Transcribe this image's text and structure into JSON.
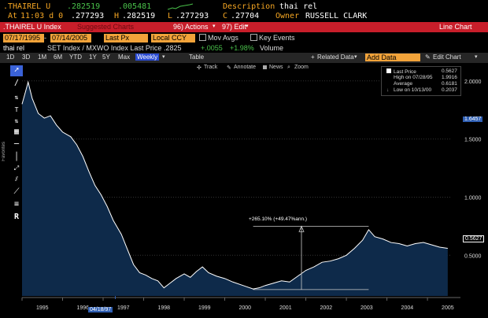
{
  "header": {
    "ticker": ".THAIREL U",
    "last": ".282519",
    "change": ".005481",
    "description_label": "Description",
    "description": "thai rel",
    "at_label": "At",
    "time": "11:03 d 0",
    "open": ".277293",
    "high_label": "H",
    "high": ".282519",
    "low_label": "L",
    "low": ".277293",
    "close_label": "C",
    "close": ".27704",
    "owner_label": "Owner",
    "owner": "RUSSELL CLARK"
  },
  "function_bar": {
    "security": ".THAIREL U Index",
    "compare": "Suggested Charts",
    "actions": "96) Actions",
    "edit": "97) Edit",
    "chart_type": "Line Chart"
  },
  "settings_bar": {
    "start_date": "07/17/1995",
    "end_date": "07/14/2005",
    "price_field": "Last Px",
    "currency": "Local CCY",
    "mov_avgs": "Mov Avgs",
    "key_events": "Key Events"
  },
  "info_bar": {
    "name": "thai rel",
    "series": "SET Index / MXWO Index Last Price",
    "price": ".2825",
    "change": "+.0055",
    "pct": "+1.98%",
    "volume": "Volume"
  },
  "tabs": [
    "1D",
    "3D",
    "1M",
    "6M",
    "YTD",
    "1Y",
    "5Y",
    "Max",
    "Weekly",
    "Table"
  ],
  "active_tab": "Weekly",
  "right_tools": {
    "related": "Related Data",
    "add": "Add Data",
    "edit": "Edit Chart"
  },
  "chart_tools": [
    "Track",
    "Annotate",
    "News",
    "Zoom"
  ],
  "favorites": "Favorites",
  "legend": {
    "last_price_label": "Last Price",
    "last_price": "0.5627",
    "high_label": "High on 07/28/95",
    "high": "1.9916",
    "average_label": "Average",
    "average": "0.6181",
    "low_label": "Low on 10/13/00",
    "low": "0.2037"
  },
  "annotation": "+265.10% (+49.47%ann.)",
  "crosshair_label": "04/18/97",
  "price_boxes": {
    "crosshair": "1.6457",
    "last": "0.5627"
  },
  "colors": {
    "background": "#000000",
    "bar_red": "#c81e2a",
    "amber": "#f5a623",
    "line": "#ffffff",
    "area": "#0e2a4a",
    "tab_active": "#2a4bd3",
    "label_blue": "#2f5fb3"
  },
  "chart_data": {
    "type": "area",
    "title": "",
    "xlabel": "",
    "ylabel": "",
    "x_ticks": [
      "1995",
      "1996",
      "1997",
      "1998",
      "1999",
      "2000",
      "2001",
      "2002",
      "2003",
      "2004",
      "2005"
    ],
    "y_ticks": [
      "0.5000",
      "1.0000",
      "1.5000",
      "2.0000"
    ],
    "ylim": [
      0.15,
      2.1
    ],
    "xlim": [
      1995.0,
      2005.6
    ],
    "grid": true,
    "series": [
      {
        "values": [
          [
            1995.0,
            1.8
          ],
          [
            1995.08,
            1.9
          ],
          [
            1995.15,
            1.99
          ],
          [
            1995.25,
            1.85
          ],
          [
            1995.4,
            1.72
          ],
          [
            1995.55,
            1.68
          ],
          [
            1995.7,
            1.7
          ],
          [
            1995.85,
            1.62
          ],
          [
            1996.0,
            1.56
          ],
          [
            1996.2,
            1.52
          ],
          [
            1996.35,
            1.45
          ],
          [
            1996.5,
            1.35
          ],
          [
            1996.65,
            1.22
          ],
          [
            1996.8,
            1.1
          ],
          [
            1996.95,
            1.02
          ],
          [
            1997.1,
            0.92
          ],
          [
            1997.25,
            0.8
          ],
          [
            1997.45,
            0.68
          ],
          [
            1997.6,
            0.55
          ],
          [
            1997.75,
            0.42
          ],
          [
            1997.9,
            0.35
          ],
          [
            1998.05,
            0.33
          ],
          [
            1998.2,
            0.3
          ],
          [
            1998.35,
            0.28
          ],
          [
            1998.5,
            0.22
          ],
          [
            1998.65,
            0.26
          ],
          [
            1998.8,
            0.3
          ],
          [
            1999.0,
            0.34
          ],
          [
            1999.15,
            0.31
          ],
          [
            1999.3,
            0.36
          ],
          [
            1999.45,
            0.4
          ],
          [
            1999.6,
            0.35
          ],
          [
            1999.8,
            0.32
          ],
          [
            2000.0,
            0.3
          ],
          [
            2000.2,
            0.27
          ],
          [
            2000.45,
            0.24
          ],
          [
            2000.7,
            0.21
          ],
          [
            2000.85,
            0.22
          ],
          [
            2001.0,
            0.24
          ],
          [
            2001.2,
            0.26
          ],
          [
            2001.4,
            0.28
          ],
          [
            2001.6,
            0.27
          ],
          [
            2001.8,
            0.32
          ],
          [
            2002.0,
            0.37
          ],
          [
            2002.2,
            0.4
          ],
          [
            2002.4,
            0.44
          ],
          [
            2002.6,
            0.45
          ],
          [
            2002.8,
            0.47
          ],
          [
            2003.0,
            0.5
          ],
          [
            2003.2,
            0.56
          ],
          [
            2003.4,
            0.63
          ],
          [
            2003.55,
            0.72
          ],
          [
            2003.7,
            0.66
          ],
          [
            2003.9,
            0.64
          ],
          [
            2004.1,
            0.61
          ],
          [
            2004.3,
            0.6
          ],
          [
            2004.5,
            0.58
          ],
          [
            2004.7,
            0.6
          ],
          [
            2004.9,
            0.61
          ],
          [
            2005.1,
            0.59
          ],
          [
            2005.3,
            0.57
          ],
          [
            2005.5,
            0.56
          ]
        ]
      }
    ],
    "annotation_measure": {
      "start": [
        2000.7,
        0.205
      ],
      "end": [
        2003.55,
        0.75
      ],
      "label": "+265.10% (+49.47%ann.)"
    },
    "crosshair": {
      "x": 1997.3,
      "y": 1.6457
    }
  }
}
